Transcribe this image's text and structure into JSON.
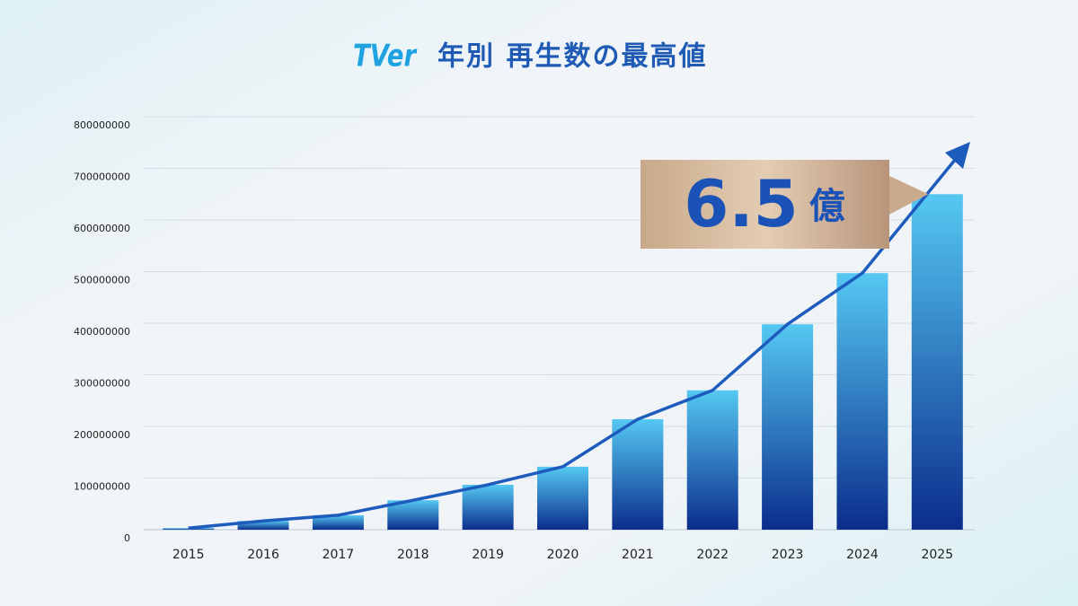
{
  "chart_data": {
    "type": "bar",
    "logo": "TVer",
    "title": "年別 再生数の最高値",
    "categories": [
      "2015",
      "2016",
      "2017",
      "2018",
      "2019",
      "2020",
      "2021",
      "2022",
      "2023",
      "2024",
      "2025"
    ],
    "values": [
      3000000,
      17000000,
      28000000,
      57000000,
      87000000,
      122000000,
      214000000,
      270000000,
      398000000,
      497000000,
      650000000
    ],
    "value_labels": [
      null,
      null,
      null,
      null,
      null,
      null,
      null,
      null,
      null,
      null,
      "6.5億"
    ],
    "ylim": [
      0,
      800000000
    ],
    "yticks": [
      0,
      100000000,
      200000000,
      300000000,
      400000000,
      500000000,
      600000000,
      700000000,
      800000000
    ],
    "grid": true,
    "color": [
      "#55c8f2",
      "#0b2d8c"
    ]
  }
}
